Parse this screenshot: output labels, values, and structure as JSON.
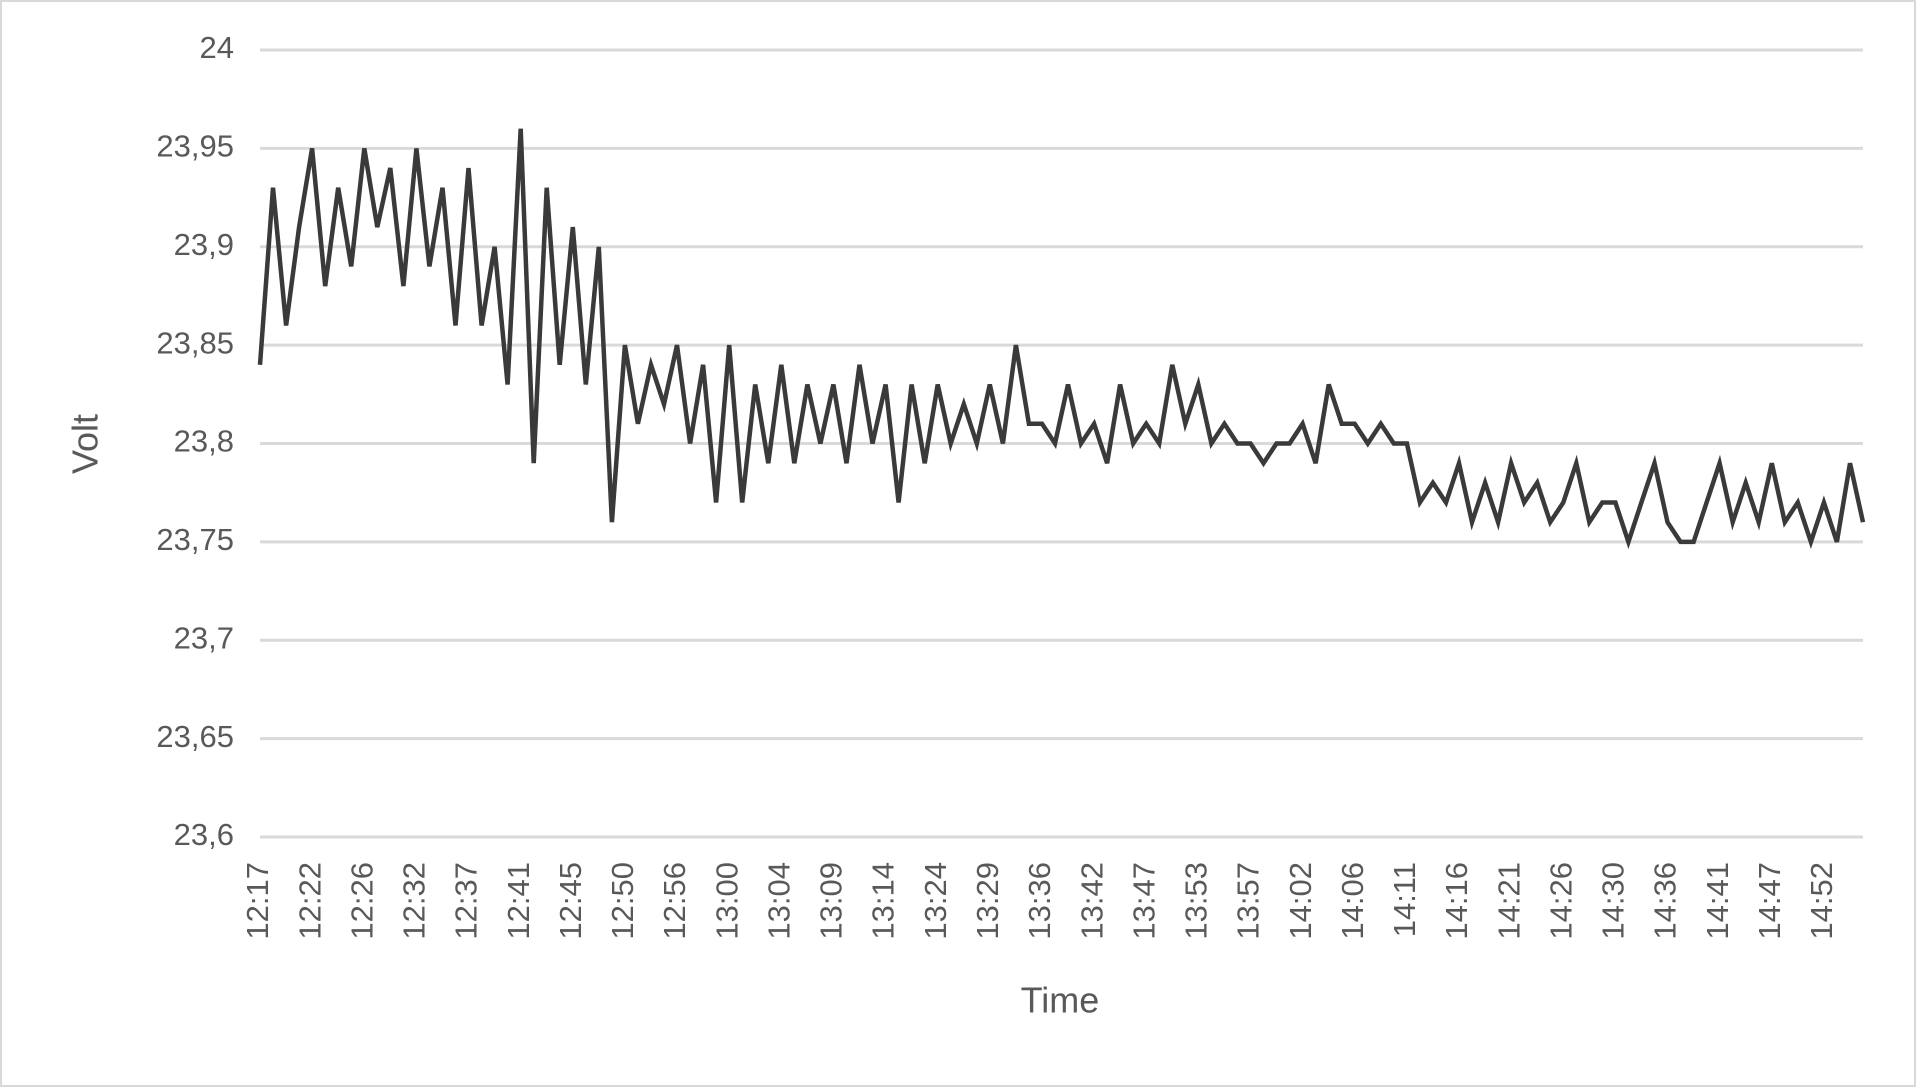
{
  "chart_data": {
    "type": "line",
    "x_label": "Time",
    "y_label": "Volt",
    "categories": [
      "12:17",
      null,
      null,
      null,
      "12:22",
      null,
      null,
      null,
      "12:26",
      null,
      null,
      null,
      "12:32",
      null,
      null,
      null,
      "12:37",
      null,
      null,
      null,
      "12:41",
      null,
      null,
      null,
      "12:45",
      null,
      null,
      null,
      "12:50",
      null,
      null,
      null,
      "12:56",
      null,
      null,
      null,
      "13:00",
      null,
      null,
      null,
      "13:04",
      null,
      null,
      null,
      "13:09",
      null,
      null,
      null,
      "13:14",
      null,
      null,
      null,
      "13:24",
      null,
      null,
      null,
      "13:29",
      null,
      null,
      null,
      "13:36",
      null,
      null,
      null,
      "13:42",
      null,
      null,
      null,
      "13:47",
      null,
      null,
      null,
      "13:53",
      null,
      null,
      null,
      "13:57",
      null,
      null,
      null,
      "14:02",
      null,
      null,
      null,
      "14:06",
      null,
      null,
      null,
      "14:11",
      null,
      null,
      null,
      "14:16",
      null,
      null,
      null,
      "14:21",
      null,
      null,
      null,
      "14:26",
      null,
      null,
      null,
      "14:30",
      null,
      null,
      null,
      "14:36",
      null,
      null,
      null,
      "14:41",
      null,
      null,
      null,
      "14:47",
      null,
      null,
      null,
      "14:52",
      null,
      null,
      null
    ],
    "series": [
      {
        "color": "#3a3a3a",
        "values": [
          23.84,
          23.93,
          23.86,
          23.91,
          23.95,
          23.88,
          23.93,
          23.89,
          23.95,
          23.91,
          23.94,
          23.88,
          23.95,
          23.89,
          23.93,
          23.86,
          23.94,
          23.86,
          23.9,
          23.83,
          23.96,
          23.79,
          23.93,
          23.84,
          23.91,
          23.83,
          23.9,
          23.76,
          23.85,
          23.81,
          23.84,
          23.82,
          23.85,
          23.8,
          23.84,
          23.77,
          23.85,
          23.77,
          23.83,
          23.79,
          23.84,
          23.79,
          23.83,
          23.8,
          23.83,
          23.79,
          23.84,
          23.8,
          23.83,
          23.77,
          23.83,
          23.79,
          23.83,
          23.8,
          23.82,
          23.8,
          23.83,
          23.8,
          23.85,
          23.81,
          23.81,
          23.8,
          23.83,
          23.8,
          23.81,
          23.79,
          23.83,
          23.8,
          23.81,
          23.8,
          23.84,
          23.81,
          23.83,
          23.8,
          23.81,
          23.8,
          23.8,
          23.79,
          23.8,
          23.8,
          23.81,
          23.79,
          23.83,
          23.81,
          23.81,
          23.8,
          23.81,
          23.8,
          23.8,
          23.77,
          23.78,
          23.77,
          23.79,
          23.76,
          23.78,
          23.76,
          23.79,
          23.77,
          23.78,
          23.76,
          23.77,
          23.79,
          23.76,
          23.77,
          23.77,
          23.75,
          23.77,
          23.79,
          23.76,
          23.75,
          23.75,
          23.77,
          23.79,
          23.76,
          23.78,
          23.76,
          23.79,
          23.76,
          23.77,
          23.75,
          23.77,
          23.75,
          23.79,
          23.76
        ]
      }
    ],
    "ylim": [
      23.6,
      24
    ],
    "yticks": [
      {
        "value": 23.6,
        "label": "23,6"
      },
      {
        "value": 23.65,
        "label": "23,65"
      },
      {
        "value": 23.7,
        "label": "23,7"
      },
      {
        "value": 23.75,
        "label": "23,75"
      },
      {
        "value": 23.8,
        "label": "23,8"
      },
      {
        "value": 23.85,
        "label": "23,85"
      },
      {
        "value": 23.9,
        "label": "23,9"
      },
      {
        "value": 23.95,
        "label": "23,95"
      },
      24
    ],
    "grid": true
  }
}
